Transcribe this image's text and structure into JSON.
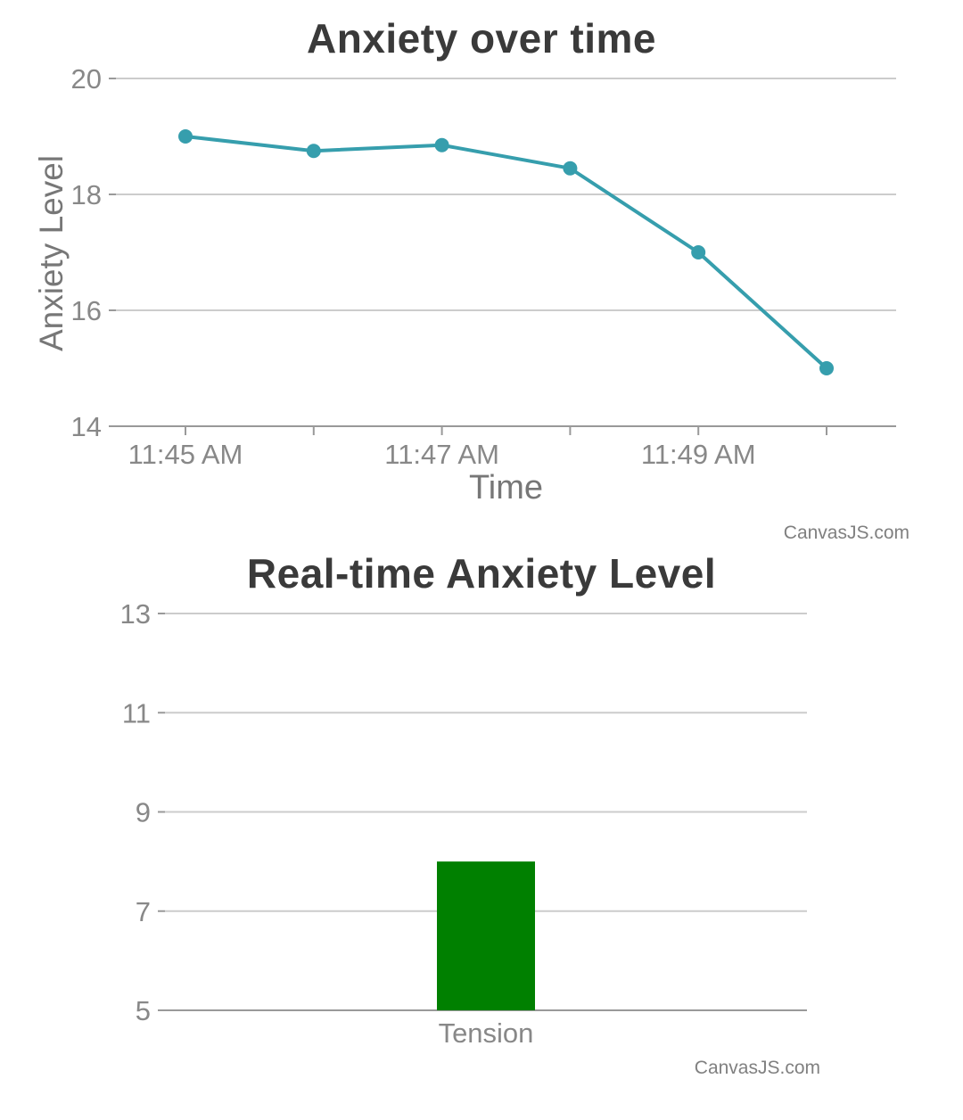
{
  "style": {
    "background": "#ffffff",
    "title_color": "#3a3a3a",
    "axis_title_color": "#777777",
    "tick_label_color": "#888888",
    "grid_color": "#cccccc",
    "axis_line_color": "#999999",
    "credit_color": "#808080"
  },
  "chart_data": [
    {
      "type": "line",
      "title": "Anxiety over time",
      "xlabel": "Time",
      "ylabel": "Anxiety Level",
      "x": [
        "11:45 AM",
        "11:46 AM",
        "11:47 AM",
        "11:48 AM",
        "11:49 AM",
        "11:50 AM"
      ],
      "x_tick_labels": [
        "11:45 AM",
        "",
        "11:47 AM",
        "",
        "11:49 AM",
        ""
      ],
      "values": [
        19,
        18.75,
        18.85,
        18.45,
        17,
        15
      ],
      "ylim": [
        14,
        20
      ],
      "y_ticks": [
        20,
        18,
        16,
        14
      ],
      "grid": true,
      "legend": "none",
      "line_color": "#369EAD",
      "marker_radius": 8,
      "credit": "CanvasJS.com"
    },
    {
      "type": "bar",
      "title": "Real-time Anxiety Level",
      "xlabel": "",
      "ylabel": "",
      "categories": [
        "Tension"
      ],
      "values": [
        8
      ],
      "ylim": [
        5,
        13
      ],
      "y_ticks": [
        13,
        11,
        9,
        7,
        5
      ],
      "grid": true,
      "legend": "none",
      "bar_color": "#008000",
      "credit": "CanvasJS.com"
    }
  ]
}
